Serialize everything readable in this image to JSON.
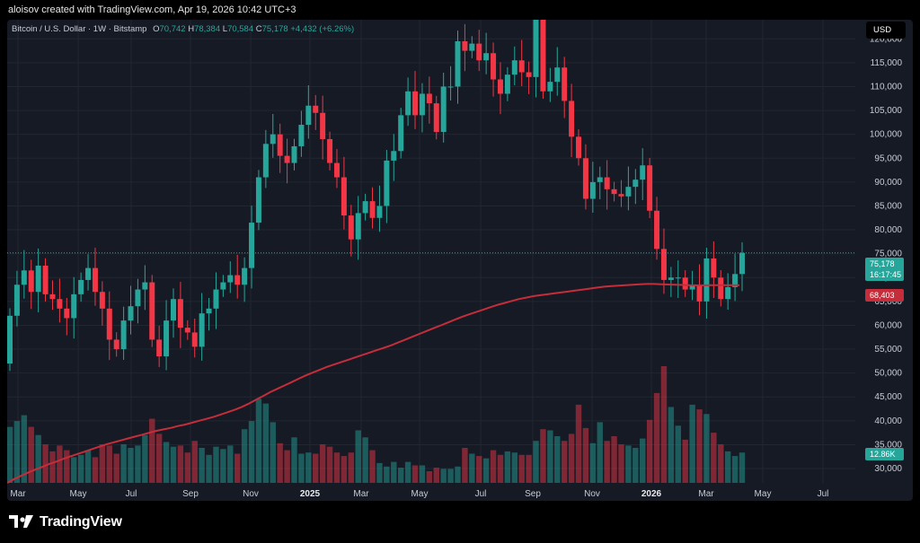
{
  "header": {
    "caption": "aloisov created with TradingView.com, Apr 19, 2026 10:42 UTC+3"
  },
  "legend": {
    "title": "Bitcoin / U.S. Dollar · 1W · Bitstamp",
    "o_label": "O",
    "o_value": "70,742",
    "h_label": "H",
    "h_value": "78,384",
    "l_label": "L",
    "l_value": "70,584",
    "c_label": "C",
    "c_value": "75,178",
    "change": "+4,432 (+6.26%)"
  },
  "currency_button": "USD",
  "price_tags": {
    "last_price": "75,178",
    "countdown": "16:17:45",
    "moving_average": "68,403",
    "volume": "12.86K"
  },
  "brand": {
    "name": "TradingView"
  },
  "colors": {
    "up": "#26a69a",
    "down": "#f23645",
    "ma": "#c62d3a",
    "background": "#161a25"
  },
  "chart_data": {
    "type": "candlestick",
    "symbol": "Bitcoin / U.S. Dollar",
    "interval": "1W",
    "exchange": "Bitstamp",
    "y_axis": {
      "side": "right",
      "range": [
        27000,
        124000
      ],
      "ticks": [
        "120,000",
        "115,000",
        "110,000",
        "105,000",
        "100,000",
        "95,000",
        "90,000",
        "85,000",
        "80,000",
        "75,000",
        "70,000",
        "65,000",
        "60,000",
        "55,000",
        "50,000",
        "45,000",
        "40,000",
        "35,000",
        "30,000"
      ]
    },
    "x_axis": {
      "ticks": [
        "Mar",
        "May",
        "Jul",
        "Sep",
        "Nov",
        "2025",
        "Mar",
        "May",
        "Jul",
        "Sep",
        "Nov",
        "2026",
        "Mar",
        "May",
        "Jul"
      ],
      "bold": [
        "2025",
        "2026"
      ]
    },
    "grid": true,
    "last_price_line": 75178,
    "closes": [
      62000,
      68500,
      71500,
      67000,
      72500,
      66500,
      65500,
      63500,
      61500,
      66500,
      69500,
      72000,
      67000,
      63500,
      57000,
      55000,
      61000,
      64000,
      67500,
      69000,
      57000,
      53500,
      61000,
      65500,
      59500,
      58500,
      55500,
      62500,
      63500,
      67500,
      69000,
      70500,
      68500,
      72000,
      81500,
      91000,
      98000,
      100000,
      95500,
      94000,
      97500,
      102000,
      106000,
      104500,
      99000,
      94000,
      91000,
      83000,
      78000,
      83500,
      86000,
      82500,
      85000,
      94500,
      96500,
      104000,
      109000,
      104000,
      108500,
      106500,
      100500,
      110000,
      110000,
      119500,
      117500,
      119000,
      115500,
      117000,
      111500,
      108500,
      112500,
      115500,
      113000,
      112000,
      124000,
      109000,
      111000,
      114000,
      107000,
      99500,
      95000,
      86500,
      90000,
      91000,
      88500,
      87500,
      87000,
      89000,
      90500,
      93500,
      84000,
      76000,
      69500,
      70000,
      70000,
      67500,
      68500,
      65000,
      74000,
      70000,
      65500,
      68000,
      70742,
      75178
    ],
    "moving_average": {
      "name": "",
      "color": "#c62d3a",
      "values": [
        27000,
        27800,
        28500,
        29200,
        29800,
        30400,
        31000,
        31500,
        32100,
        32600,
        33100,
        33600,
        34100,
        34600,
        35100,
        35500,
        35900,
        36300,
        36700,
        37100,
        37500,
        37900,
        38200,
        38500,
        38900,
        39200,
        39600,
        40000,
        40400,
        40800,
        41300,
        41800,
        42300,
        42900,
        43600,
        44400,
        45200,
        46000,
        46700,
        47400,
        48100,
        48800,
        49500,
        50100,
        50700,
        51300,
        51800,
        52300,
        52800,
        53300,
        53800,
        54300,
        54800,
        55300,
        55800,
        56400,
        57000,
        57600,
        58200,
        58800,
        59400,
        60000,
        60600,
        61200,
        61800,
        62300,
        62800,
        63300,
        63800,
        64300,
        64700,
        65100,
        65500,
        65800,
        66100,
        66300,
        66500,
        66700,
        66900,
        67100,
        67300,
        67500,
        67700,
        67900,
        68100,
        68200,
        68300,
        68400,
        68500,
        68600,
        68650,
        68650,
        68600,
        68550,
        68500,
        68450,
        68400,
        68380,
        68380,
        68400,
        68400,
        68400,
        68403,
        68403
      ]
    },
    "volume": {
      "last": "12.86K",
      "values": [
        0.48,
        0.53,
        0.58,
        0.48,
        0.41,
        0.33,
        0.27,
        0.32,
        0.28,
        0.22,
        0.24,
        0.28,
        0.22,
        0.33,
        0.32,
        0.25,
        0.33,
        0.3,
        0.32,
        0.41,
        0.55,
        0.42,
        0.35,
        0.31,
        0.32,
        0.26,
        0.36,
        0.3,
        0.24,
        0.31,
        0.29,
        0.32,
        0.25,
        0.46,
        0.53,
        0.72,
        0.68,
        0.52,
        0.34,
        0.28,
        0.39,
        0.25,
        0.26,
        0.25,
        0.33,
        0.31,
        0.26,
        0.23,
        0.26,
        0.45,
        0.39,
        0.28,
        0.17,
        0.14,
        0.18,
        0.13,
        0.18,
        0.15,
        0.15,
        0.1,
        0.13,
        0.12,
        0.12,
        0.14,
        0.3,
        0.25,
        0.23,
        0.21,
        0.28,
        0.24,
        0.27,
        0.26,
        0.24,
        0.24,
        0.36,
        0.46,
        0.45,
        0.4,
        0.36,
        0.42,
        0.67,
        0.47,
        0.34,
        0.52,
        0.36,
        0.4,
        0.33,
        0.32,
        0.3,
        0.38,
        0.54,
        0.77,
        1.0,
        0.65,
        0.49,
        0.37,
        0.67,
        0.63,
        0.59,
        0.43,
        0.33,
        0.27,
        0.23,
        0.26
      ]
    }
  }
}
